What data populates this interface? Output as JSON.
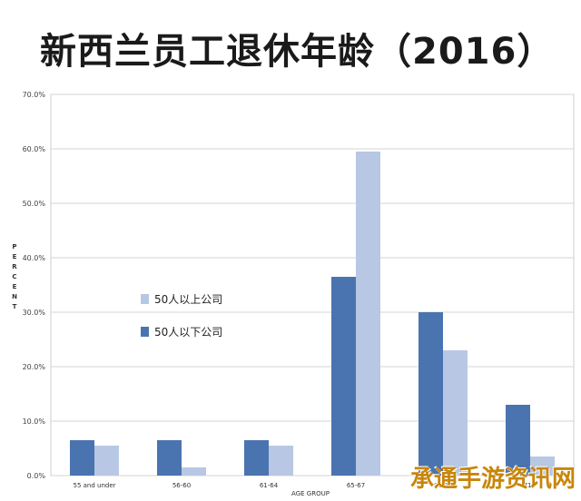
{
  "title": "新西兰员工退休年龄（2016）",
  "watermark": "承通手游资讯网",
  "chart_data": {
    "type": "bar",
    "title": "新西兰员工退休年龄（2016）",
    "xlabel": "AGE GROUP",
    "ylabel": "PERCENT",
    "ylim": [
      0,
      70
    ],
    "ytick_step": 10,
    "ytick_labels": [
      "0.0%",
      "10.0%",
      "20.0%",
      "30.0%",
      "40.0%",
      "50.0%",
      "60.0%",
      "70.0%"
    ],
    "grid": true,
    "legend_position": "middle-left",
    "categories": [
      "55 and under",
      "56-60",
      "61-64",
      "65-67",
      "68-70",
      "71+"
    ],
    "category_labels_visible": [
      "55 and under",
      "56-60",
      "61-64",
      "65-67",
      "68-70",
      "71+"
    ],
    "series": [
      {
        "name": "50人以下公司",
        "color": "#4a74b0",
        "values": [
          6.5,
          6.5,
          6.5,
          36.5,
          30,
          13
        ]
      },
      {
        "name": "50人以上公司",
        "color": "#b8c7e3",
        "values": [
          5.5,
          1.5,
          5.5,
          59.5,
          23,
          3.5
        ]
      }
    ],
    "legend_order": [
      "50人以上公司",
      "50人以下公司"
    ]
  }
}
